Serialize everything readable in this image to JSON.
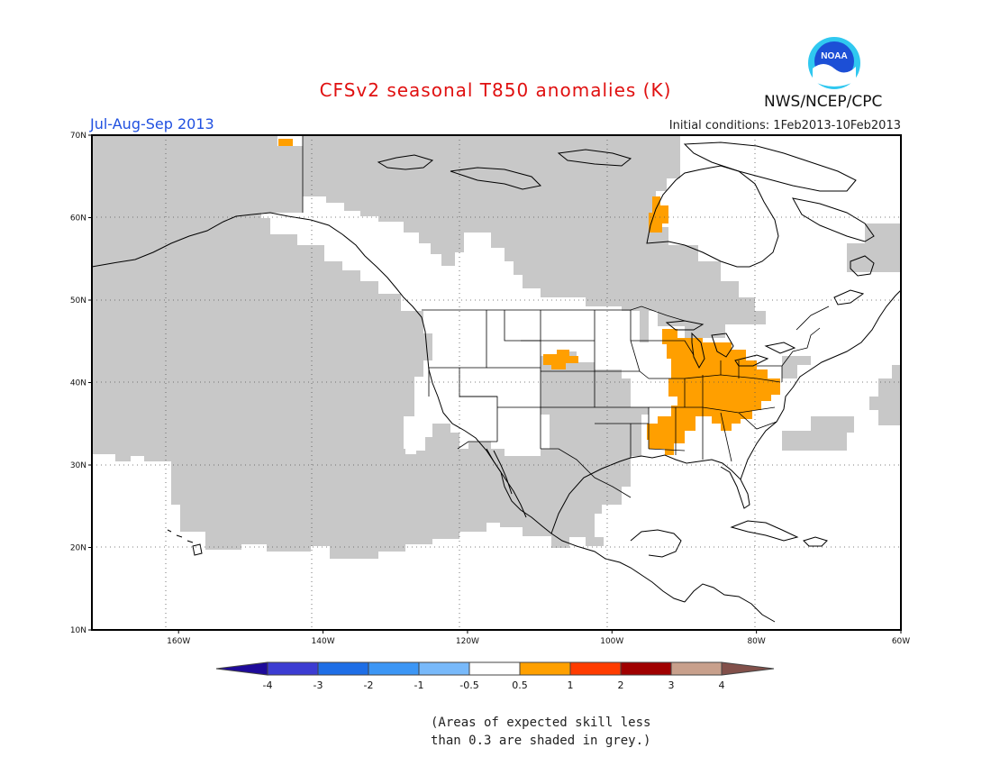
{
  "header": {
    "title": "CFSv2 seasonal T850 anomalies (K)",
    "season": "Jul-Aug-Sep 2013",
    "initial_conditions": "Initial conditions: 1Feb2013-10Feb2013",
    "agency": "NWS/NCEP/CPC",
    "logo_text": "NOAA"
  },
  "map": {
    "lon_range": [
      -172,
      -60
    ],
    "lat_range": [
      10,
      70
    ],
    "lon_ticks": [
      {
        "value": -160,
        "label": "160W"
      },
      {
        "value": -140,
        "label": "140W"
      },
      {
        "value": -120,
        "label": "120W"
      },
      {
        "value": -100,
        "label": "100W"
      },
      {
        "value": -80,
        "label": "80W"
      },
      {
        "value": -60,
        "label": "60W"
      }
    ],
    "lat_ticks": [
      {
        "value": 10,
        "label": "10N"
      },
      {
        "value": 20,
        "label": "20N"
      },
      {
        "value": 30,
        "label": "30N"
      },
      {
        "value": 40,
        "label": "40N"
      },
      {
        "value": 50,
        "label": "50N"
      },
      {
        "value": 60,
        "label": "60N"
      },
      {
        "value": 70,
        "label": "70N"
      }
    ],
    "skill_shading_color": "#c8c8c8",
    "land_outline_color": "#000000"
  },
  "anomaly_regions": [
    {
      "name": "eastern-us-warm-anomaly",
      "category": "0.5 to 1",
      "color": "#ff9f00"
    },
    {
      "name": "colorado-warm-anomaly",
      "category": "0.5 to 1",
      "color": "#ff9f00"
    },
    {
      "name": "hudson-bay-warm-anomaly",
      "category": "0.5 to 1",
      "color": "#ff9f00"
    },
    {
      "name": "arctic-warm-anomaly",
      "category": "0.5 to 1",
      "color": "#ff9f00"
    }
  ],
  "colorbar": {
    "labels": [
      "-4",
      "-3",
      "-2",
      "-1",
      "-0.5",
      "0.5",
      "1",
      "2",
      "3",
      "4"
    ],
    "colors": [
      "#1e0a9a",
      "#3c3cd2",
      "#1e6ee6",
      "#3c96f5",
      "#78b9fa",
      "#ffffff",
      "#ffa000",
      "#ff3c00",
      "#a00000",
      "#c8a08c",
      "#82504a"
    ]
  },
  "note": {
    "line1": "(Areas of expected skill less",
    "line2": "than 0.3 are shaded in grey.)"
  }
}
